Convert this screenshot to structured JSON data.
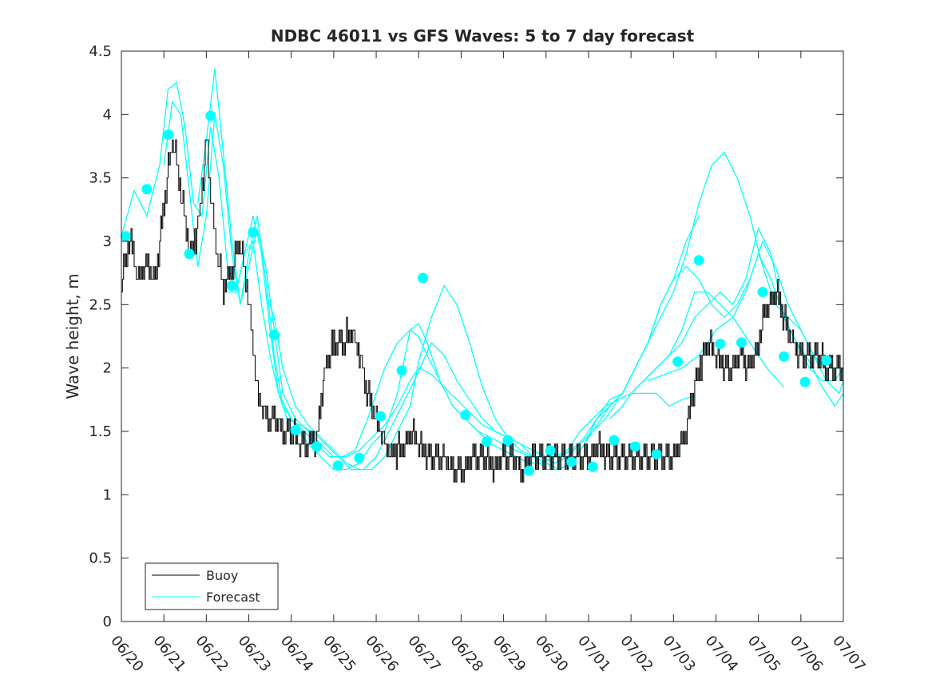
{
  "chart_data": {
    "type": "line",
    "title": "NDBC 46011 vs GFS Waves: 5 to 7 day forecast",
    "xlabel": "",
    "ylabel": "Wave height, m",
    "xlim": [
      0,
      17
    ],
    "ylim": [
      0,
      4.5
    ],
    "x_tick_labels": [
      "06/20",
      "06/21",
      "06/22",
      "06/23",
      "06/24",
      "06/25",
      "06/26",
      "06/27",
      "06/28",
      "06/29",
      "06/30",
      "07/01",
      "07/02",
      "07/03",
      "07/04",
      "07/05",
      "07/06",
      "07/07"
    ],
    "y_ticks": [
      0,
      0.5,
      1,
      1.5,
      2,
      2.5,
      3,
      3.5,
      4,
      4.5
    ],
    "y_tick_labels": [
      "0",
      "0.5",
      "1",
      "1.5",
      "2",
      "2.5",
      "3",
      "3.5",
      "4",
      "4.5"
    ],
    "grid": false,
    "legend": {
      "placement": "bottom-left",
      "entries": [
        "Buoy",
        "Forecast"
      ]
    },
    "colors": {
      "buoy": "#000000",
      "forecast": "#00ffff",
      "markers": "#00ffff",
      "axes": "#262626"
    },
    "buoy": {
      "name": "Buoy",
      "x": [
        0,
        0.2,
        0.4,
        0.6,
        0.8,
        1.0,
        1.2,
        1.4,
        1.6,
        1.8,
        2.0,
        2.2,
        2.4,
        2.6,
        2.8,
        3.0,
        3.2,
        3.4,
        3.6,
        3.8,
        4.0,
        4.2,
        4.4,
        4.6,
        4.8,
        5.0,
        5.2,
        5.4,
        5.6,
        5.8,
        6.0,
        6.2,
        6.4,
        6.6,
        6.8,
        7.0,
        7.2,
        7.4,
        7.6,
        7.8,
        8.0,
        8.2,
        8.4,
        8.6,
        8.8,
        9.0,
        9.2,
        9.4,
        9.6,
        9.8,
        10.0,
        10.2,
        10.4,
        10.6,
        10.8,
        11.0,
        11.2,
        11.4,
        11.6,
        11.8,
        12.0,
        12.2,
        12.4,
        12.6,
        12.8,
        13.0,
        13.2,
        13.4,
        13.6,
        13.8,
        14.0,
        14.2,
        14.4,
        14.6,
        14.8,
        15.0,
        15.2,
        15.4,
        15.6,
        15.8,
        16.0,
        16.2,
        16.4,
        16.6,
        16.8,
        17.0
      ],
      "y": [
        2.7,
        3.0,
        2.7,
        2.8,
        2.7,
        3.3,
        3.8,
        3.4,
        2.9,
        3.1,
        3.8,
        3.0,
        2.6,
        2.8,
        3.0,
        2.5,
        1.8,
        1.6,
        1.6,
        1.5,
        1.5,
        1.4,
        1.4,
        1.45,
        2.0,
        2.2,
        2.2,
        2.3,
        2.1,
        1.8,
        1.6,
        1.4,
        1.3,
        1.4,
        1.5,
        1.4,
        1.3,
        1.3,
        1.3,
        1.2,
        1.2,
        1.3,
        1.3,
        1.3,
        1.2,
        1.3,
        1.3,
        1.2,
        1.3,
        1.3,
        1.3,
        1.3,
        1.3,
        1.3,
        1.3,
        1.3,
        1.4,
        1.3,
        1.3,
        1.3,
        1.3,
        1.3,
        1.3,
        1.3,
        1.3,
        1.3,
        1.4,
        1.7,
        2.0,
        2.2,
        2.1,
        2.0,
        2.0,
        2.1,
        2.0,
        2.2,
        2.5,
        2.6,
        2.4,
        2.2,
        2.1,
        2.1,
        2.1,
        2.0,
        2.0,
        2.0
      ]
    },
    "forecast_series": [
      {
        "x": [
          0,
          0.3,
          0.6,
          0.9,
          1.1,
          1.3,
          1.5,
          1.7,
          1.9,
          2.1,
          2.3,
          2.5,
          2.7,
          2.9,
          3.1,
          3.3,
          3.5,
          3.7,
          4.0,
          4.3,
          4.6,
          4.9,
          5.2,
          5.5,
          5.8,
          6.0,
          6.2,
          6.5,
          6.8,
          7.0,
          7.2,
          7.5,
          7.8,
          8.1,
          8.4,
          8.7,
          9.0,
          9.3,
          9.6,
          9.9,
          10.2,
          10.5,
          10.8,
          11.1,
          11.4,
          11.7,
          12.0,
          12.3,
          12.6,
          12.9,
          13.2,
          13.5,
          13.8,
          14.1,
          14.4,
          14.7,
          15.0,
          15.3,
          15.6,
          15.9,
          16.2,
          16.5,
          16.8,
          17.0
        ],
        "y": [
          3.04,
          3.4,
          3.2,
          3.6,
          4.2,
          4.25,
          3.9,
          3.3,
          3.2,
          3.9,
          3.5,
          2.8,
          2.6,
          2.9,
          3.2,
          2.9,
          2.3,
          1.8,
          1.6,
          1.5,
          1.4,
          1.3,
          1.3,
          1.35,
          1.6,
          1.8,
          2.0,
          2.2,
          2.3,
          2.25,
          2.1,
          1.9,
          1.7,
          1.6,
          1.5,
          1.45,
          1.4,
          1.35,
          1.3,
          1.3,
          1.25,
          1.3,
          1.4,
          1.5,
          1.6,
          1.75,
          1.8,
          1.9,
          2.0,
          2.1,
          2.3,
          2.6,
          2.6,
          2.5,
          2.4,
          2.6,
          2.9,
          2.7,
          2.4,
          2.2,
          2.0,
          1.9,
          1.9,
          2.0
        ]
      },
      {
        "x": [
          1.0,
          1.2,
          1.4,
          1.6,
          1.8,
          2.0,
          2.2,
          2.4,
          2.6,
          2.8,
          3.0,
          3.2,
          3.4,
          3.6,
          3.8,
          4.1,
          4.4,
          4.7,
          5.0,
          5.3,
          5.6,
          5.9,
          6.2,
          6.5,
          6.8,
          7.0,
          7.2,
          7.5,
          7.8,
          8.1,
          8.4,
          8.7,
          9.0,
          9.3,
          9.6,
          9.9,
          10.2,
          10.5,
          10.8,
          11.1,
          11.4,
          11.7,
          12.0,
          12.3,
          12.6,
          12.9,
          13.2,
          13.5,
          13.8,
          14.1,
          14.4,
          14.7,
          15.0,
          15.3,
          15.6,
          15.9,
          16.2,
          16.5,
          16.8,
          17.0
        ],
        "y": [
          3.6,
          4.1,
          4.0,
          3.4,
          2.8,
          3.2,
          4.0,
          3.6,
          2.9,
          2.5,
          2.9,
          3.2,
          2.7,
          2.1,
          1.7,
          1.55,
          1.4,
          1.3,
          1.2,
          1.2,
          1.25,
          1.4,
          1.5,
          1.8,
          2.3,
          2.35,
          2.2,
          1.9,
          1.7,
          1.6,
          1.5,
          1.4,
          1.35,
          1.3,
          1.25,
          1.25,
          1.3,
          1.35,
          1.5,
          1.6,
          1.7,
          1.75,
          1.8,
          1.9,
          2.0,
          2.1,
          2.2,
          2.4,
          2.5,
          2.6,
          2.5,
          2.7,
          3.1,
          2.9,
          2.4,
          2.2,
          2.05,
          1.85,
          1.7,
          1.8
        ]
      },
      {
        "x": [
          1.8,
          2.0,
          2.2,
          2.4,
          2.6,
          2.8,
          3.0,
          3.2,
          3.4,
          3.6,
          3.8,
          4.1,
          4.4,
          4.7,
          5.0,
          5.3,
          5.6,
          5.9,
          6.2,
          6.5,
          6.8,
          7.0,
          7.3,
          7.6,
          7.9,
          8.2,
          8.5,
          8.8,
          9.1,
          9.4,
          9.7,
          10.0,
          10.3,
          10.6,
          10.9,
          11.2,
          11.5,
          11.8,
          12.1,
          12.4,
          12.7,
          13.0,
          13.3,
          13.6,
          13.9,
          14.2,
          14.5,
          14.8,
          15.1,
          15.4,
          15.7,
          16.0,
          16.3,
          16.6,
          16.9,
          17.0
        ],
        "y": [
          3.3,
          3.8,
          4.36,
          3.7,
          3.0,
          2.5,
          2.8,
          3.1,
          2.8,
          2.3,
          1.8,
          1.6,
          1.5,
          1.4,
          1.3,
          1.3,
          1.35,
          1.45,
          1.55,
          1.7,
          1.9,
          2.0,
          1.95,
          1.85,
          1.75,
          1.65,
          1.55,
          1.5,
          1.45,
          1.4,
          1.35,
          1.3,
          1.3,
          1.35,
          1.45,
          1.6,
          1.7,
          1.8,
          2.0,
          2.2,
          2.4,
          2.6,
          2.9,
          3.3,
          3.6,
          3.7,
          3.5,
          3.2,
          2.8,
          2.5,
          2.4,
          2.3,
          2.1,
          2.0,
          2.0,
          2.0
        ]
      },
      {
        "x": [
          2.5,
          2.7,
          2.9,
          3.1,
          3.3,
          3.5,
          3.7,
          3.9,
          4.2,
          4.5,
          4.8,
          5.1,
          5.4,
          5.7,
          6.0,
          6.3,
          6.6,
          6.9,
          7.1,
          7.3,
          7.6,
          7.9,
          8.2,
          8.5,
          8.8,
          9.1,
          9.4,
          9.7,
          10.0,
          10.3,
          10.6,
          10.9,
          11.2,
          11.5,
          11.8,
          12.1,
          12.4,
          12.7,
          13.0,
          13.3,
          13.6,
          13.9,
          14.2,
          14.5,
          14.8,
          15.1,
          15.4,
          15.7,
          16.0,
          16.3,
          16.6,
          16.9,
          17.0
        ],
        "y": [
          2.6,
          2.6,
          2.9,
          3.0,
          2.5,
          2.1,
          1.8,
          1.6,
          1.55,
          1.5,
          1.4,
          1.3,
          1.2,
          1.2,
          1.3,
          1.5,
          1.7,
          1.9,
          2.05,
          2.2,
          2.1,
          1.9,
          1.75,
          1.6,
          1.5,
          1.45,
          1.4,
          1.3,
          1.2,
          1.2,
          1.25,
          1.4,
          1.55,
          1.7,
          1.8,
          2.0,
          2.2,
          2.5,
          2.7,
          2.8,
          2.7,
          2.5,
          2.4,
          2.5,
          2.7,
          3.0,
          2.8,
          2.5,
          2.3,
          2.1,
          1.9,
          1.8,
          1.9
        ]
      },
      {
        "x": [
          3.4,
          3.6,
          3.8,
          4.1,
          4.4,
          4.7,
          5.0,
          5.3,
          5.6,
          5.9,
          6.2,
          6.5,
          6.8,
          7.0,
          7.3,
          7.6,
          7.9,
          8.2,
          8.5,
          8.8,
          9.1,
          9.4,
          9.7,
          10.0,
          10.3,
          10.6,
          10.9,
          11.2,
          11.5,
          11.8,
          12.1,
          12.4,
          12.7,
          13.0,
          13.3,
          13.6
        ],
        "y": [
          2.6,
          2.4,
          2.0,
          1.7,
          1.55,
          1.45,
          1.35,
          1.25,
          1.2,
          1.2,
          1.3,
          1.5,
          1.7,
          2.05,
          2.4,
          2.65,
          2.5,
          2.2,
          1.85,
          1.6,
          1.45,
          1.35,
          1.3,
          1.25,
          1.2,
          1.25,
          1.4,
          1.6,
          1.75,
          1.8,
          2.0,
          2.2,
          2.5,
          2.7,
          3.0,
          3.2
        ]
      },
      {
        "x": [
          11.5,
          11.8,
          12.0,
          12.3,
          12.6,
          12.9,
          13.2,
          13.5
        ],
        "y": [
          1.6,
          1.7,
          1.8,
          1.8,
          1.8,
          1.7,
          1.75,
          1.78
        ]
      },
      {
        "x": [
          12.4,
          12.8,
          13.2,
          13.6,
          14.0,
          14.4,
          14.8,
          15.2,
          15.6
        ],
        "y": [
          1.9,
          1.95,
          2.0,
          2.1,
          2.3,
          2.4,
          2.2,
          2.0,
          1.85
        ]
      }
    ],
    "marker_points": {
      "x": [
        0.1,
        0.6,
        1.1,
        1.6,
        2.1,
        2.6,
        3.1,
        3.6,
        4.1,
        4.6,
        5.1,
        5.6,
        6.1,
        6.6,
        7.1,
        8.1,
        8.6,
        9.1,
        9.6,
        10.1,
        10.6,
        11.1,
        11.6,
        12.1,
        12.6,
        13.1,
        13.6,
        14.1,
        14.6,
        15.1,
        15.6,
        16.1,
        16.6
      ],
      "y": [
        3.04,
        3.41,
        3.84,
        2.9,
        3.99,
        2.65,
        3.07,
        2.26,
        1.51,
        1.38,
        1.23,
        1.29,
        1.62,
        1.98,
        2.71,
        1.63,
        1.42,
        1.43,
        1.19,
        1.35,
        1.26,
        1.22,
        1.43,
        1.38,
        1.32,
        2.05,
        2.85,
        2.19,
        2.2,
        2.6,
        2.09,
        1.89,
        2.06
      ]
    }
  }
}
